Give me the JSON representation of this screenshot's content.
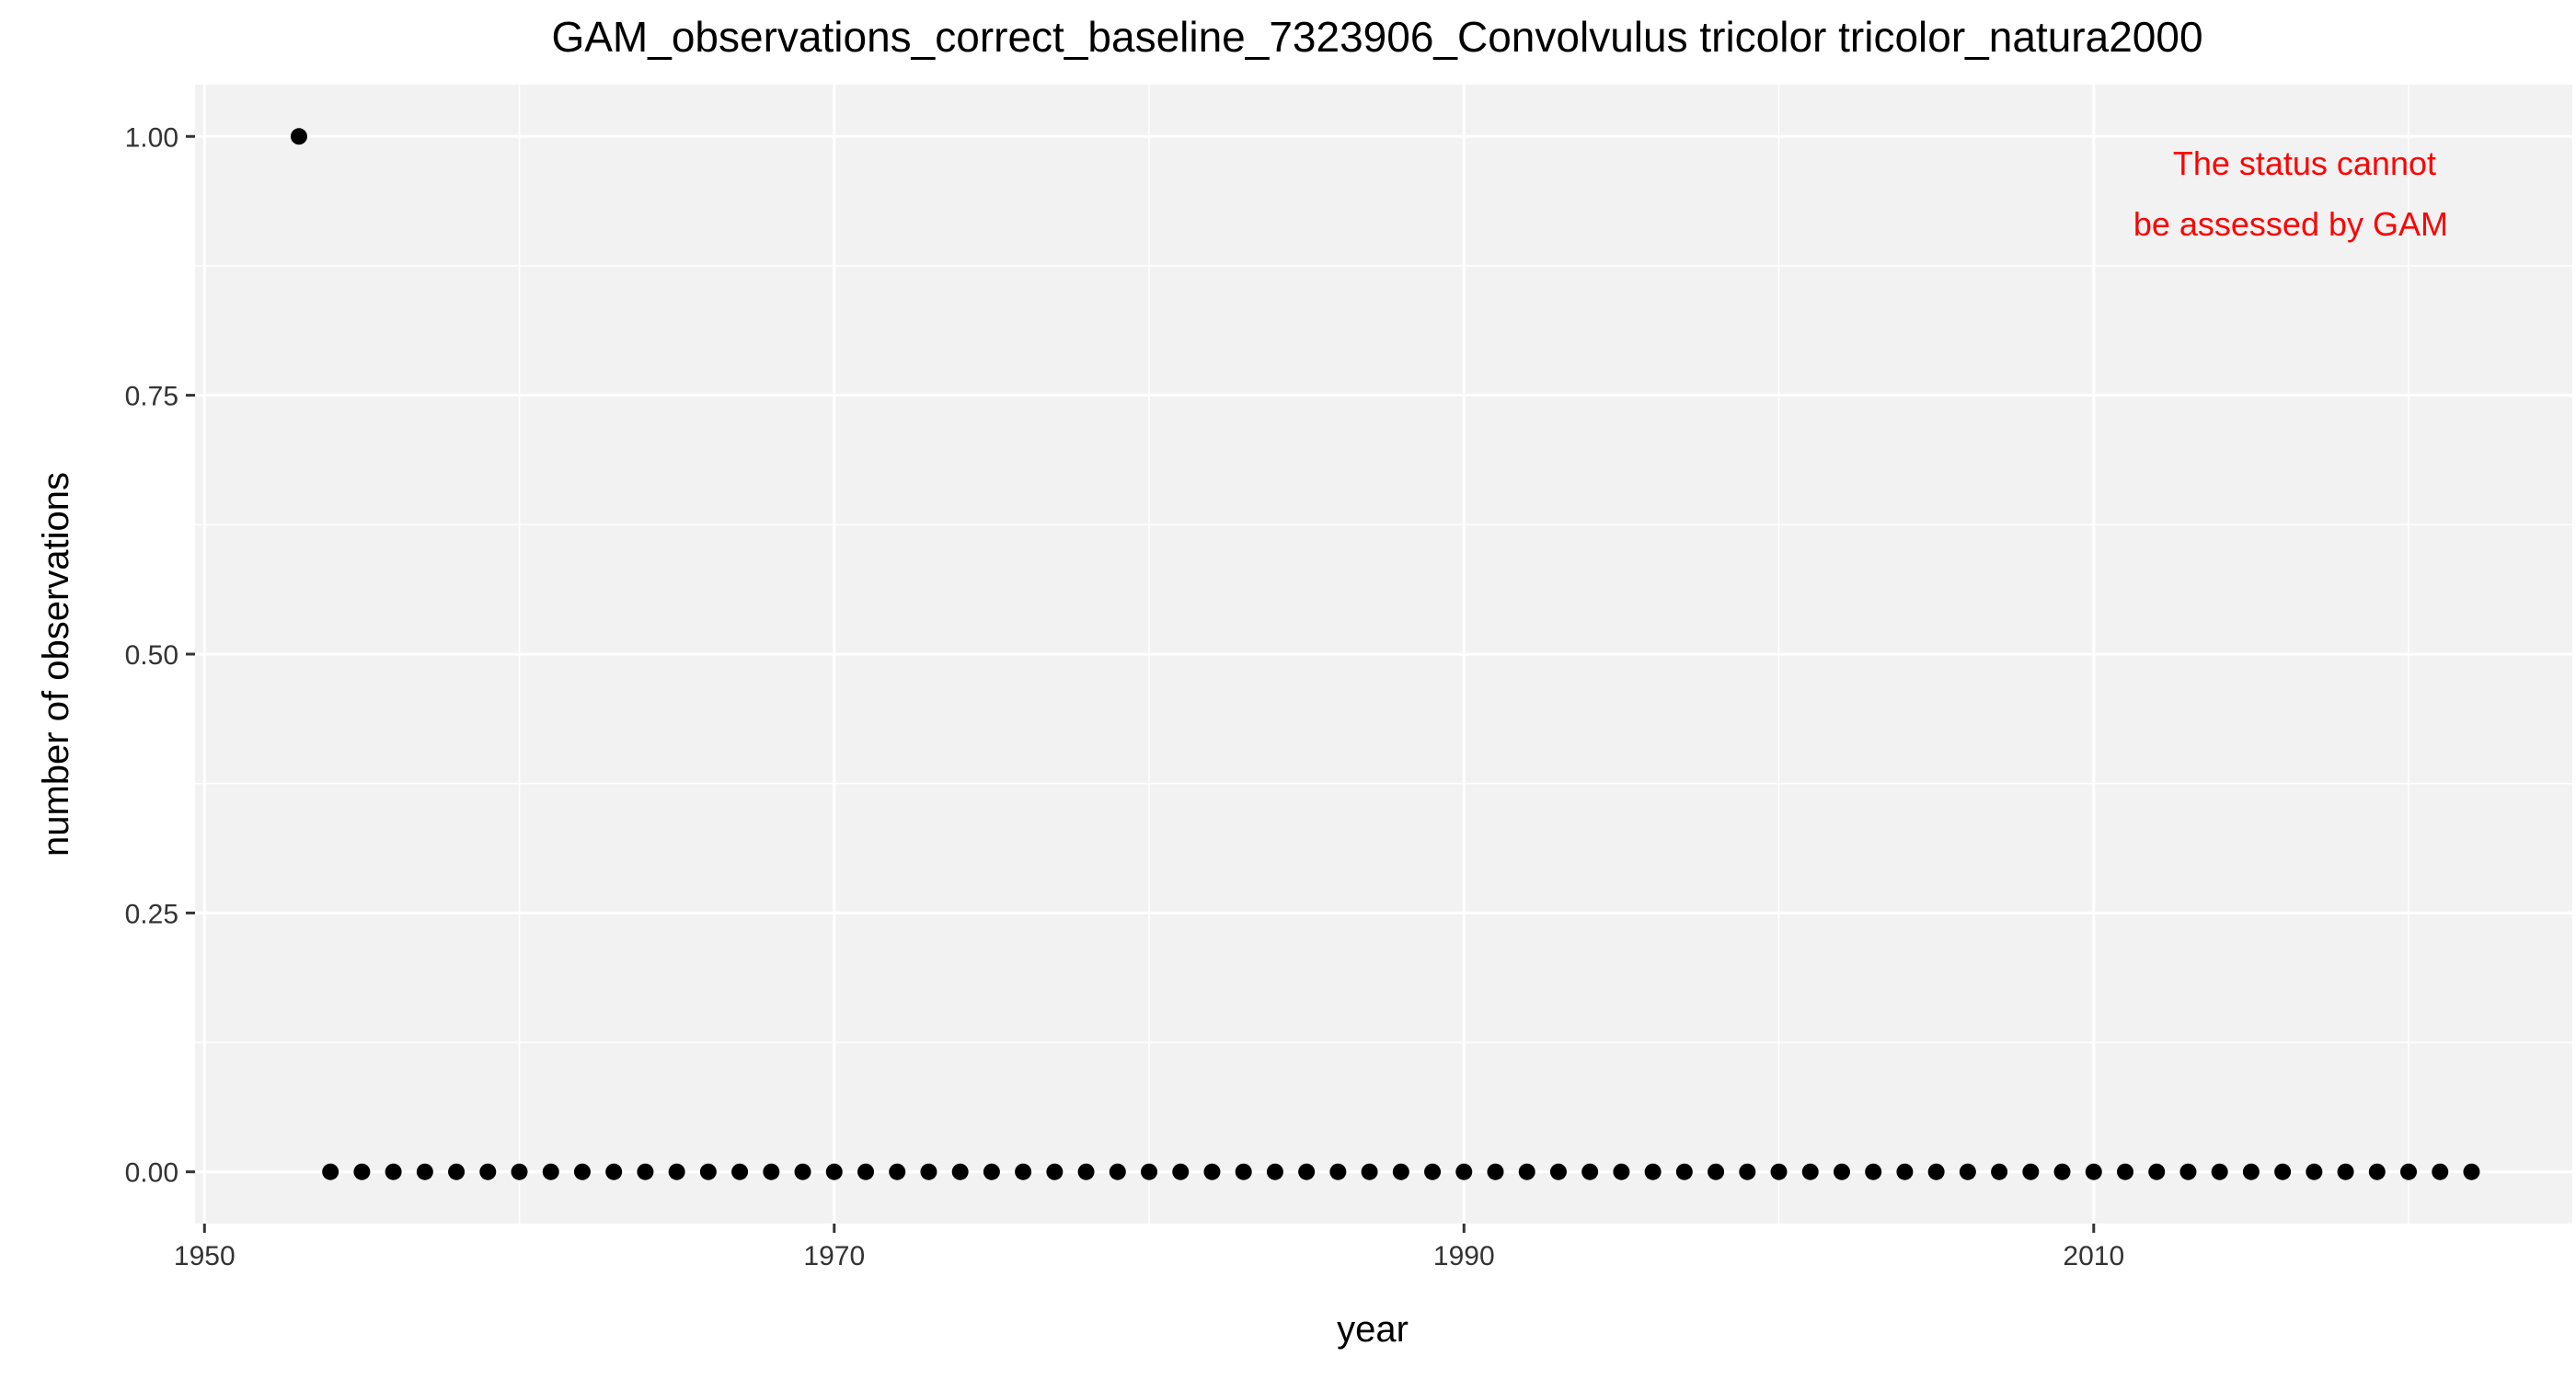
{
  "chart_data": {
    "type": "scatter",
    "title": "GAM_observations_correct_baseline_7323906_Convolvulus tricolor tricolor_natura2000",
    "xlabel": "year",
    "ylabel": "number of observations",
    "xlim": [
      1949.7,
      2025.2
    ],
    "ylim": [
      -0.05,
      1.05
    ],
    "x_ticks": [
      1950,
      1970,
      1990,
      2010
    ],
    "x_tick_labels": [
      "1950",
      "1970",
      "1990",
      "2010"
    ],
    "y_ticks": [
      0,
      0.25,
      0.5,
      0.75,
      1.0
    ],
    "y_tick_labels": [
      "0.00",
      "0.25",
      "0.50",
      "0.75",
      "1.00"
    ],
    "grid": true,
    "annotation": {
      "lines": [
        "The status cannot",
        "be assessed by GAM"
      ],
      "color": "#ff0000",
      "position": "top-right"
    },
    "series": [
      {
        "name": "observations",
        "x": [
          1953,
          1954,
          1955,
          1956,
          1957,
          1958,
          1959,
          1960,
          1961,
          1962,
          1963,
          1964,
          1965,
          1966,
          1967,
          1968,
          1969,
          1970,
          1971,
          1972,
          1973,
          1974,
          1975,
          1976,
          1977,
          1978,
          1979,
          1980,
          1981,
          1982,
          1983,
          1984,
          1985,
          1986,
          1987,
          1988,
          1989,
          1990,
          1991,
          1992,
          1993,
          1994,
          1995,
          1996,
          1997,
          1998,
          1999,
          2000,
          2001,
          2002,
          2003,
          2004,
          2005,
          2006,
          2007,
          2008,
          2009,
          2010,
          2011,
          2012,
          2013,
          2014,
          2015,
          2016,
          2017,
          2018,
          2019,
          2020,
          2021,
          2022
        ],
        "values": [
          1,
          0,
          0,
          0,
          0,
          0,
          0,
          0,
          0,
          0,
          0,
          0,
          0,
          0,
          0,
          0,
          0,
          0,
          0,
          0,
          0,
          0,
          0,
          0,
          0,
          0,
          0,
          0,
          0,
          0,
          0,
          0,
          0,
          0,
          0,
          0,
          0,
          0,
          0,
          0,
          0,
          0,
          0,
          0,
          0,
          0,
          0,
          0,
          0,
          0,
          0,
          0,
          0,
          0,
          0,
          0,
          0,
          0,
          0,
          0,
          0,
          0,
          0,
          0,
          0,
          0,
          0,
          0,
          0,
          0
        ]
      }
    ],
    "colors": {
      "panel": "#f2f2f2",
      "grid": "#ffffff",
      "point": "#000000",
      "text": "#000000",
      "tick_label": "#333333"
    }
  }
}
